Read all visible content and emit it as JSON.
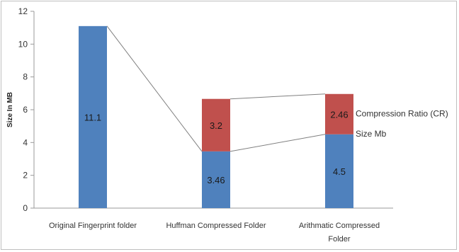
{
  "chart_data": {
    "type": "bar",
    "stacked": true,
    "categories": [
      [
        "Original Fingerprint folder"
      ],
      [
        "Huffman Compressed Folder"
      ],
      [
        "Arithmatic Compressed",
        "Folder"
      ]
    ],
    "series": [
      {
        "name": "Size Mb",
        "values": [
          11.1,
          3.46,
          4.5
        ],
        "labels": [
          "11.1",
          "3.46",
          "4.5"
        ],
        "color": "#4f81bd"
      },
      {
        "name": "Compression Ratio (CR)",
        "values": [
          null,
          3.2,
          2.46
        ],
        "labels": [
          "",
          "3.2",
          "2.46"
        ],
        "color": "#c0504d"
      }
    ],
    "ylabel": "Size In MB",
    "xlabel": "",
    "ylim": [
      0,
      12
    ],
    "yticks": [
      0,
      2,
      4,
      6,
      8,
      10,
      12
    ],
    "series_lines": true,
    "legend_position": "right"
  }
}
